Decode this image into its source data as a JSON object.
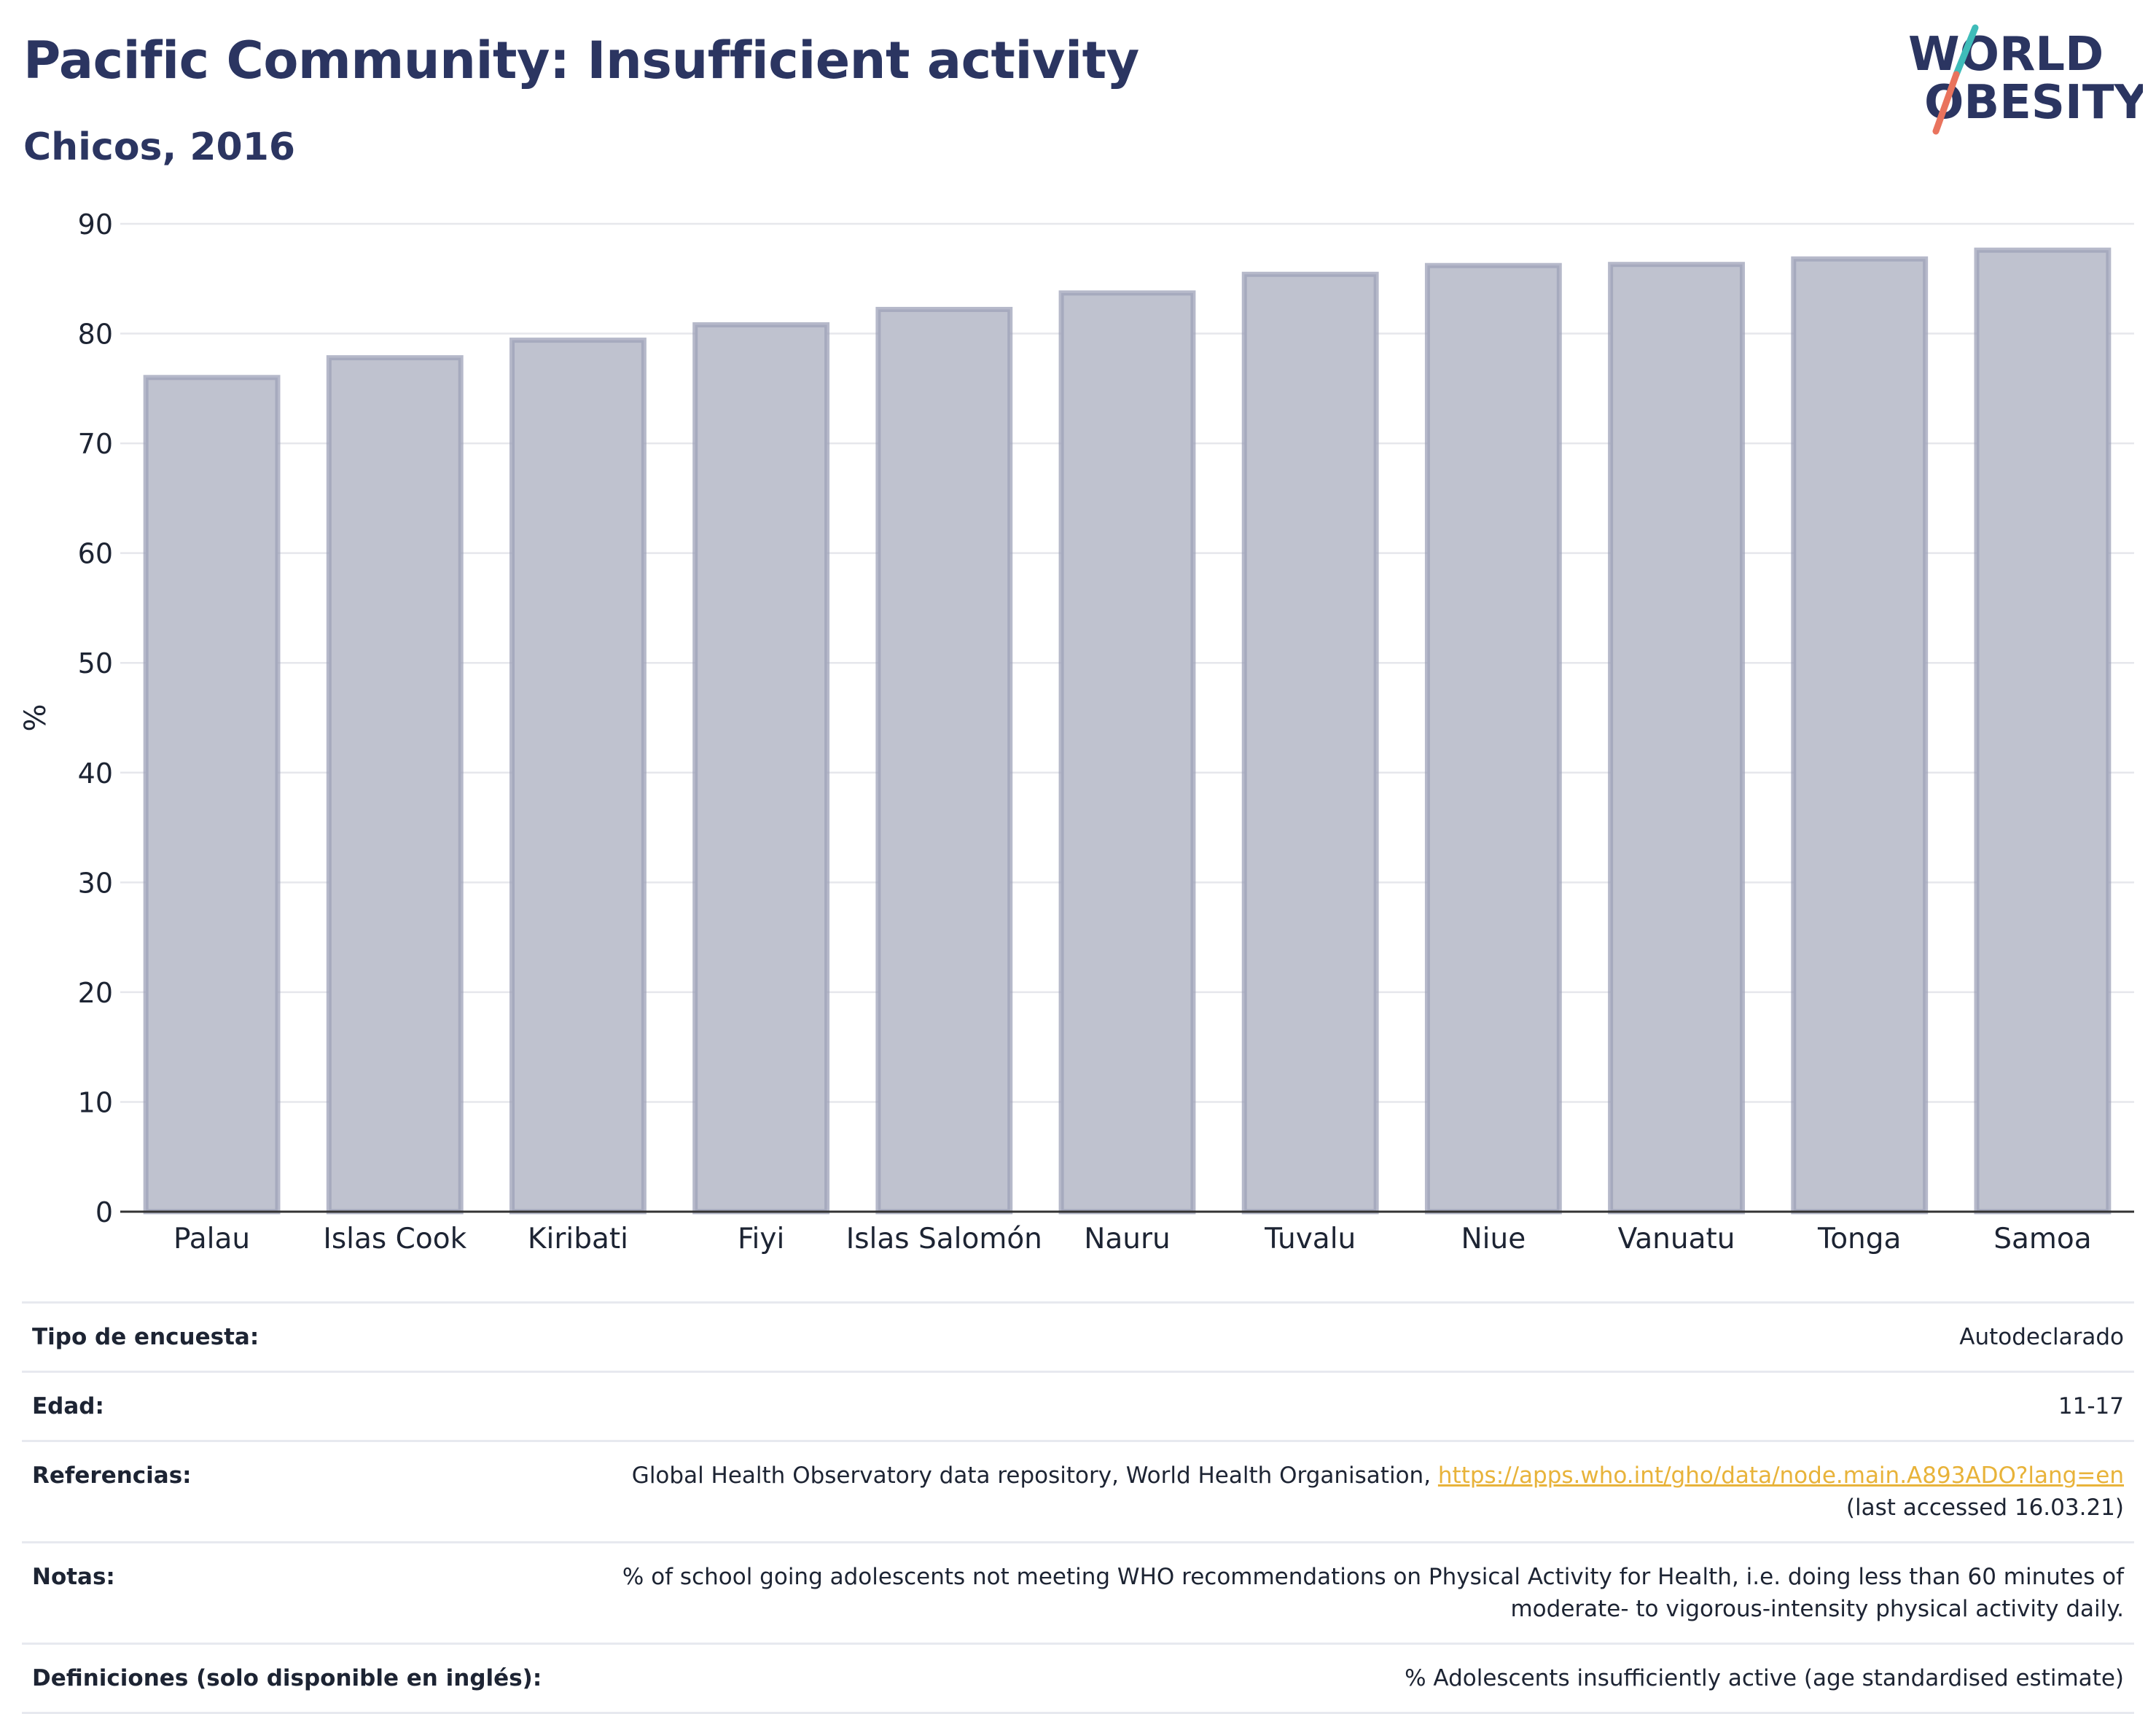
{
  "header": {
    "title": "Pacific Community: Insufficient activity",
    "subtitle": "Chicos, 2016"
  },
  "logo": {
    "line1": "WORLD",
    "line2": "OBESITY"
  },
  "colors": {
    "bar_fill": "#bfc2cf",
    "bar_stroke": "#9da2b8",
    "title": "#2b3561",
    "logo_teal": "#3fbcb9",
    "logo_coral": "#e9735d",
    "link": "#e8b33a"
  },
  "chart_data": {
    "type": "bar",
    "title": "Pacific Community: Insufficient activity",
    "subtitle": "Chicos, 2016",
    "ylabel": "%",
    "xlabel": "",
    "ylim": [
      0,
      90
    ],
    "yticks": [
      0,
      10,
      20,
      30,
      40,
      50,
      60,
      70,
      80,
      90
    ],
    "grid": true,
    "categories": [
      "Palau",
      "Islas Cook",
      "Kiribati",
      "Fiyi",
      "Islas Salomón",
      "Nauru",
      "Tuvalu",
      "Niue",
      "Vanuatu",
      "Tonga",
      "Samoa"
    ],
    "values": [
      76.0,
      77.8,
      79.4,
      80.8,
      82.2,
      83.7,
      85.4,
      86.2,
      86.3,
      86.8,
      87.6
    ]
  },
  "meta": {
    "rows": [
      {
        "key": "Tipo de encuesta:",
        "value": "Autodeclarado"
      },
      {
        "key": "Edad:",
        "value": "11-17"
      },
      {
        "key": "Referencias:",
        "value_pre": "Global Health Observatory data repository, World Health Organisation, ",
        "link": "https://apps.who.int/gho/data/node.main.A893ADO?lang=en",
        "value_post": "(last accessed 16.03.21)"
      },
      {
        "key": "Notas:",
        "value": "% of school going adolescents not meeting WHO recommendations on Physical Activity for Health, i.e. doing less than 60 minutes of moderate- to vigorous-intensity physical activity daily."
      },
      {
        "key": "Definiciones (solo disponible en inglés):",
        "value": "% Adolescents insufficiently active (age standardised estimate)"
      }
    ]
  }
}
